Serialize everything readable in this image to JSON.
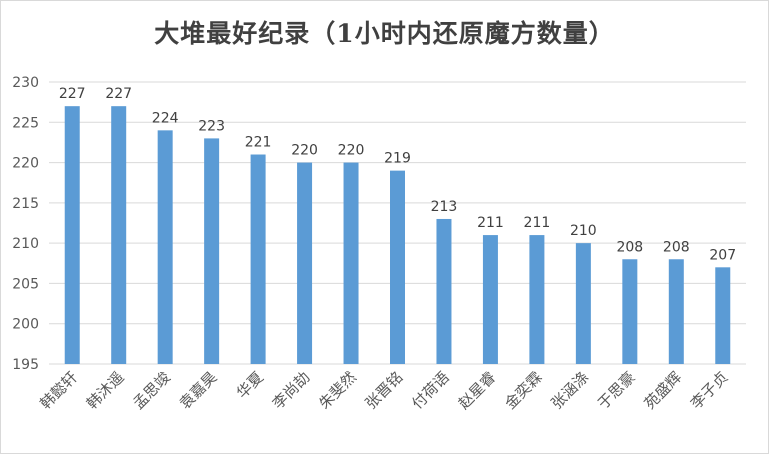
{
  "chart_data": {
    "type": "bar",
    "title": "大堆最好纪录（1小时内还原魔方数量）",
    "xlabel": "",
    "ylabel": "",
    "categories": [
      "韩懿轩",
      "韩沐遥",
      "孟思竣",
      "袁嘉昊",
      "华夏",
      "李尚劼",
      "朱斐然",
      "张晋铭",
      "付荷语",
      "赵星睿",
      "金奕霖",
      "张涵涤",
      "于思豪",
      "苑盛辉",
      "李子贞"
    ],
    "values": [
      227,
      227,
      224,
      223,
      221,
      220,
      220,
      219,
      213,
      211,
      211,
      210,
      208,
      208,
      207
    ],
    "ylim": [
      195,
      230
    ],
    "yticks": [
      195,
      200,
      205,
      210,
      215,
      220,
      225,
      230
    ],
    "grid": true,
    "legend": "none",
    "colors": {
      "bar": "#5b9bd5",
      "grid": "#d9d9d9",
      "title": "#404040",
      "text": "#595959"
    }
  }
}
